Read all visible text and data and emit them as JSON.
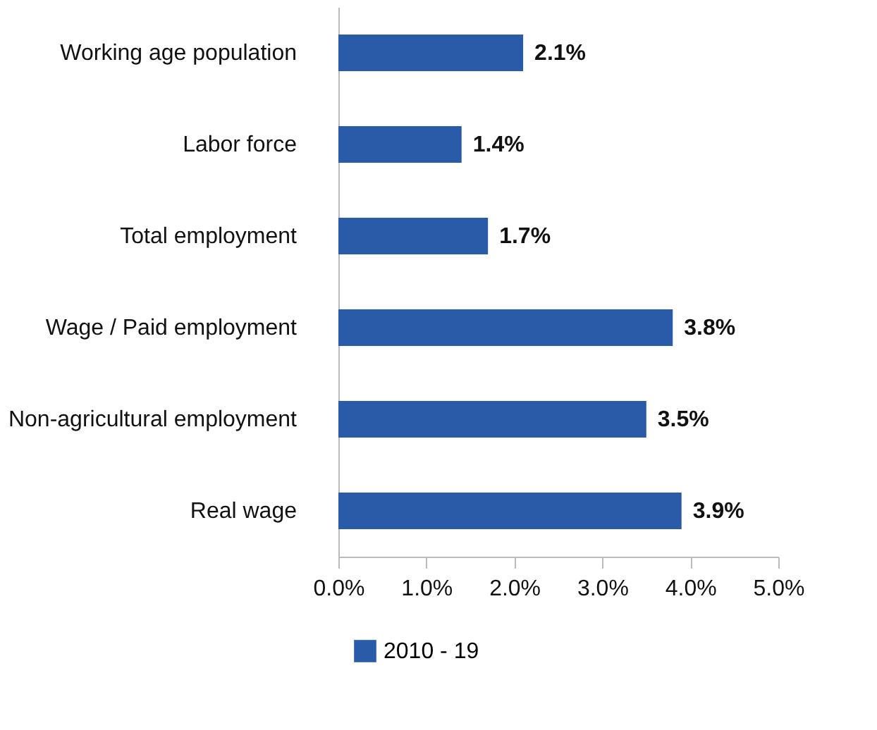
{
  "chart_data": {
    "type": "bar",
    "orientation": "horizontal",
    "categories": [
      "Working age population",
      "Labor force",
      "Total employment",
      "Wage / Paid employment",
      "Non-agricultural employment",
      "Real wage"
    ],
    "series": [
      {
        "name": "2010 - 19",
        "color": "#2a5ba8",
        "values": [
          2.1,
          1.4,
          1.7,
          3.8,
          3.5,
          3.9
        ]
      }
    ],
    "value_labels": [
      "2.1%",
      "1.4%",
      "1.7%",
      "3.8%",
      "3.5%",
      "3.9%"
    ],
    "xlim": [
      0,
      5
    ],
    "xticks": [
      {
        "value": 0,
        "label": "0.0%"
      },
      {
        "value": 1,
        "label": "1.0%"
      },
      {
        "value": 2,
        "label": "2.0%"
      },
      {
        "value": 3,
        "label": "3.0%"
      },
      {
        "value": 4,
        "label": "4.0%"
      },
      {
        "value": 5,
        "label": "5.0%"
      }
    ],
    "grid": false,
    "legend": "bottom"
  }
}
